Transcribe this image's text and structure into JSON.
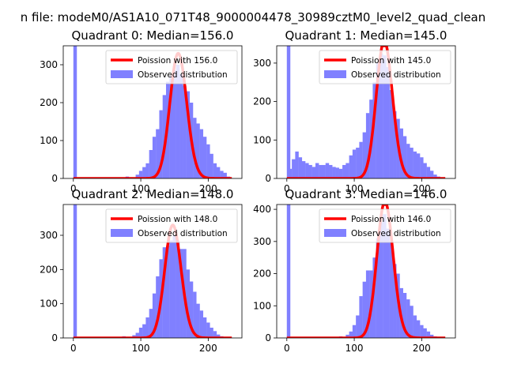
{
  "figure": {
    "suptitle": "n file: modeM0/AS1A10_071T48_9000004478_30989cztM0_level2_quad_clean"
  },
  "chart_data": [
    {
      "type": "bar",
      "title": "Quadrant 0: Median=156.0",
      "median": 156.0,
      "xlim": [
        -15,
        250
      ],
      "ylim": [
        0,
        350
      ],
      "xticks": [
        0,
        100,
        200
      ],
      "yticks": [
        0,
        100,
        200,
        300
      ],
      "bin_width": 5.2,
      "zero_bin": 400,
      "hist": [
        {
          "x": 5,
          "y": 0
        },
        {
          "x": 45,
          "y": 2
        },
        {
          "x": 60,
          "y": 2
        },
        {
          "x": 80,
          "y": 5
        },
        {
          "x": 90,
          "y": 3
        },
        {
          "x": 95,
          "y": 10
        },
        {
          "x": 100,
          "y": 20
        },
        {
          "x": 105,
          "y": 30
        },
        {
          "x": 110,
          "y": 40
        },
        {
          "x": 115,
          "y": 75
        },
        {
          "x": 120,
          "y": 110
        },
        {
          "x": 125,
          "y": 130
        },
        {
          "x": 130,
          "y": 180
        },
        {
          "x": 135,
          "y": 220
        },
        {
          "x": 140,
          "y": 255
        },
        {
          "x": 145,
          "y": 270
        },
        {
          "x": 150,
          "y": 285
        },
        {
          "x": 155,
          "y": 300
        },
        {
          "x": 160,
          "y": 275
        },
        {
          "x": 165,
          "y": 245
        },
        {
          "x": 170,
          "y": 230
        },
        {
          "x": 175,
          "y": 200
        },
        {
          "x": 180,
          "y": 160
        },
        {
          "x": 185,
          "y": 145
        },
        {
          "x": 190,
          "y": 130
        },
        {
          "x": 195,
          "y": 110
        },
        {
          "x": 200,
          "y": 90
        },
        {
          "x": 205,
          "y": 65
        },
        {
          "x": 210,
          "y": 40
        },
        {
          "x": 215,
          "y": 30
        },
        {
          "x": 220,
          "y": 20
        },
        {
          "x": 225,
          "y": 15
        },
        {
          "x": 230,
          "y": 5
        }
      ],
      "legend": [
        "Poission with 156.0",
        "Observed distribution"
      ]
    },
    {
      "type": "bar",
      "title": "Quadrant 1: Median=145.0",
      "median": 145.0,
      "xlim": [
        -15,
        250
      ],
      "ylim": [
        0,
        345
      ],
      "xticks": [
        0,
        100,
        200
      ],
      "yticks": [
        0,
        100,
        200,
        300
      ],
      "bin_width": 5.2,
      "zero_bin": 400,
      "hist": [
        {
          "x": 5,
          "y": 25
        },
        {
          "x": 10,
          "y": 50
        },
        {
          "x": 15,
          "y": 70
        },
        {
          "x": 20,
          "y": 55
        },
        {
          "x": 25,
          "y": 45
        },
        {
          "x": 30,
          "y": 40
        },
        {
          "x": 35,
          "y": 35
        },
        {
          "x": 40,
          "y": 30
        },
        {
          "x": 45,
          "y": 40
        },
        {
          "x": 50,
          "y": 35
        },
        {
          "x": 55,
          "y": 35
        },
        {
          "x": 60,
          "y": 40
        },
        {
          "x": 65,
          "y": 35
        },
        {
          "x": 70,
          "y": 30
        },
        {
          "x": 75,
          "y": 28
        },
        {
          "x": 80,
          "y": 25
        },
        {
          "x": 85,
          "y": 35
        },
        {
          "x": 90,
          "y": 40
        },
        {
          "x": 95,
          "y": 60
        },
        {
          "x": 100,
          "y": 75
        },
        {
          "x": 105,
          "y": 80
        },
        {
          "x": 110,
          "y": 95
        },
        {
          "x": 115,
          "y": 120
        },
        {
          "x": 120,
          "y": 170
        },
        {
          "x": 125,
          "y": 205
        },
        {
          "x": 130,
          "y": 250
        },
        {
          "x": 135,
          "y": 300
        },
        {
          "x": 140,
          "y": 325
        },
        {
          "x": 145,
          "y": 320
        },
        {
          "x": 150,
          "y": 290
        },
        {
          "x": 155,
          "y": 230
        },
        {
          "x": 160,
          "y": 175
        },
        {
          "x": 165,
          "y": 155
        },
        {
          "x": 170,
          "y": 130
        },
        {
          "x": 175,
          "y": 110
        },
        {
          "x": 180,
          "y": 90
        },
        {
          "x": 185,
          "y": 80
        },
        {
          "x": 190,
          "y": 70
        },
        {
          "x": 195,
          "y": 65
        },
        {
          "x": 200,
          "y": 55
        },
        {
          "x": 205,
          "y": 40
        },
        {
          "x": 210,
          "y": 30
        },
        {
          "x": 215,
          "y": 20
        },
        {
          "x": 220,
          "y": 10
        },
        {
          "x": 225,
          "y": 5
        }
      ],
      "legend": [
        "Poission with 145.0",
        "Observed distribution"
      ]
    },
    {
      "type": "bar",
      "title": "Quadrant 2: Median=148.0",
      "median": 148.0,
      "xlim": [
        -15,
        250
      ],
      "ylim": [
        0,
        390
      ],
      "xticks": [
        0,
        100,
        200
      ],
      "yticks": [
        0,
        100,
        200,
        300
      ],
      "bin_width": 5.2,
      "zero_bin": 400,
      "hist": [
        {
          "x": 45,
          "y": 2
        },
        {
          "x": 60,
          "y": 3
        },
        {
          "x": 75,
          "y": 5
        },
        {
          "x": 80,
          "y": 3
        },
        {
          "x": 90,
          "y": 8
        },
        {
          "x": 95,
          "y": 15
        },
        {
          "x": 100,
          "y": 30
        },
        {
          "x": 105,
          "y": 40
        },
        {
          "x": 110,
          "y": 60
        },
        {
          "x": 115,
          "y": 85
        },
        {
          "x": 120,
          "y": 130
        },
        {
          "x": 125,
          "y": 180
        },
        {
          "x": 130,
          "y": 230
        },
        {
          "x": 135,
          "y": 265
        },
        {
          "x": 140,
          "y": 270
        },
        {
          "x": 145,
          "y": 285
        },
        {
          "x": 150,
          "y": 300
        },
        {
          "x": 155,
          "y": 285
        },
        {
          "x": 160,
          "y": 260
        },
        {
          "x": 165,
          "y": 260
        },
        {
          "x": 170,
          "y": 200
        },
        {
          "x": 175,
          "y": 165
        },
        {
          "x": 180,
          "y": 135
        },
        {
          "x": 185,
          "y": 100
        },
        {
          "x": 190,
          "y": 80
        },
        {
          "x": 195,
          "y": 60
        },
        {
          "x": 200,
          "y": 45
        },
        {
          "x": 205,
          "y": 30
        },
        {
          "x": 210,
          "y": 20
        },
        {
          "x": 215,
          "y": 10
        },
        {
          "x": 220,
          "y": 5
        }
      ],
      "legend": [
        "Poission with 148.0",
        "Observed distribution"
      ]
    },
    {
      "type": "bar",
      "title": "Quadrant 3: Median=146.0",
      "median": 146.0,
      "xlim": [
        -15,
        250
      ],
      "ylim": [
        0,
        415
      ],
      "xticks": [
        0,
        100,
        200
      ],
      "yticks": [
        0,
        100,
        200,
        300,
        400
      ],
      "bin_width": 5.2,
      "zero_bin": 450,
      "hist": [
        {
          "x": 80,
          "y": 5
        },
        {
          "x": 90,
          "y": 10
        },
        {
          "x": 95,
          "y": 20
        },
        {
          "x": 100,
          "y": 40
        },
        {
          "x": 105,
          "y": 70
        },
        {
          "x": 110,
          "y": 130
        },
        {
          "x": 115,
          "y": 175
        },
        {
          "x": 120,
          "y": 210
        },
        {
          "x": 125,
          "y": 210
        },
        {
          "x": 130,
          "y": 250
        },
        {
          "x": 135,
          "y": 310
        },
        {
          "x": 140,
          "y": 360
        },
        {
          "x": 145,
          "y": 385
        },
        {
          "x": 150,
          "y": 340
        },
        {
          "x": 155,
          "y": 300
        },
        {
          "x": 160,
          "y": 230
        },
        {
          "x": 165,
          "y": 200
        },
        {
          "x": 170,
          "y": 155
        },
        {
          "x": 175,
          "y": 140
        },
        {
          "x": 180,
          "y": 120
        },
        {
          "x": 185,
          "y": 100
        },
        {
          "x": 190,
          "y": 70
        },
        {
          "x": 195,
          "y": 55
        },
        {
          "x": 200,
          "y": 40
        },
        {
          "x": 205,
          "y": 30
        },
        {
          "x": 210,
          "y": 20
        },
        {
          "x": 215,
          "y": 10
        },
        {
          "x": 220,
          "y": 5
        }
      ],
      "legend": [
        "Poission with 146.0",
        "Observed distribution"
      ]
    }
  ],
  "colors": {
    "bars": "#8080ff",
    "curve": "#ff0000",
    "axis": "#000000",
    "legend_border": "#cccccc",
    "background": "#ffffff"
  }
}
